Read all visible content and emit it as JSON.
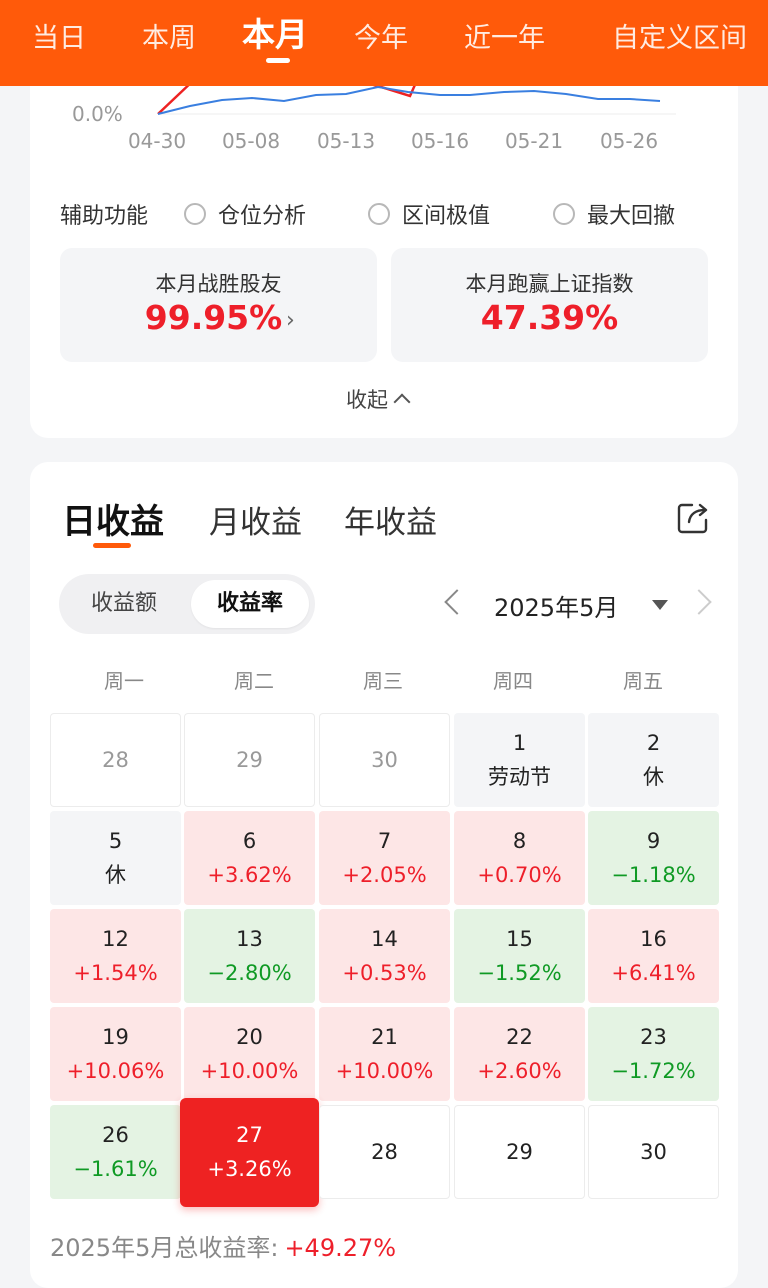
{
  "top_tabs": [
    "当日",
    "本周",
    "本月",
    "今年",
    "近一年",
    "自定义区间"
  ],
  "chart": {
    "y_tick": "0.0%",
    "x_ticks": [
      "04-30",
      "05-08",
      "05-13",
      "05-16",
      "05-21",
      "05-26"
    ],
    "colors": {
      "account": "#ee2222",
      "index": "#3a7fe0"
    }
  },
  "aux": {
    "label": "辅助功能",
    "options": [
      "仓位分析",
      "区间极值",
      "最大回撤"
    ]
  },
  "stats": {
    "beat_friends_label": "本月战胜股友",
    "beat_friends_value": "99.95%",
    "beat_index_label": "本月跑赢上证指数",
    "beat_index_value": "47.39%"
  },
  "collapse_label": "收起",
  "period_tabs": [
    "日收益",
    "月收益",
    "年收益"
  ],
  "segment": {
    "options": [
      "收益额",
      "收益率"
    ],
    "selected": "收益率"
  },
  "month": "2025年5月",
  "weekdays": [
    "周一",
    "周二",
    "周三",
    "周四",
    "周五"
  ],
  "calendar": [
    [
      {
        "d": "28",
        "v": "",
        "t": "blank"
      },
      {
        "d": "29",
        "v": "",
        "t": "blank"
      },
      {
        "d": "30",
        "v": "",
        "t": "blank"
      },
      {
        "d": "1",
        "v": "劳动节",
        "t": "holiday"
      },
      {
        "d": "2",
        "v": "休",
        "t": "holiday"
      }
    ],
    [
      {
        "d": "5",
        "v": "休",
        "t": "holiday"
      },
      {
        "d": "6",
        "v": "+3.62%",
        "t": "up"
      },
      {
        "d": "7",
        "v": "+2.05%",
        "t": "up"
      },
      {
        "d": "8",
        "v": "+0.70%",
        "t": "up"
      },
      {
        "d": "9",
        "v": "−1.18%",
        "t": "down"
      }
    ],
    [
      {
        "d": "12",
        "v": "+1.54%",
        "t": "up"
      },
      {
        "d": "13",
        "v": "−2.80%",
        "t": "down"
      },
      {
        "d": "14",
        "v": "+0.53%",
        "t": "up"
      },
      {
        "d": "15",
        "v": "−1.52%",
        "t": "down"
      },
      {
        "d": "16",
        "v": "+6.41%",
        "t": "up"
      }
    ],
    [
      {
        "d": "19",
        "v": "+10.06%",
        "t": "up"
      },
      {
        "d": "20",
        "v": "+10.00%",
        "t": "up"
      },
      {
        "d": "21",
        "v": "+10.00%",
        "t": "up"
      },
      {
        "d": "22",
        "v": "+2.60%",
        "t": "up"
      },
      {
        "d": "23",
        "v": "−1.72%",
        "t": "down"
      }
    ],
    [
      {
        "d": "26",
        "v": "−1.61%",
        "t": "down"
      },
      {
        "d": "27",
        "v": "+3.26%",
        "t": "today"
      },
      {
        "d": "28",
        "v": "",
        "t": "future"
      },
      {
        "d": "29",
        "v": "",
        "t": "future"
      },
      {
        "d": "30",
        "v": "",
        "t": "future"
      }
    ]
  ],
  "total": {
    "label": "2025年5月总收益率:",
    "value": "+49.27%"
  }
}
